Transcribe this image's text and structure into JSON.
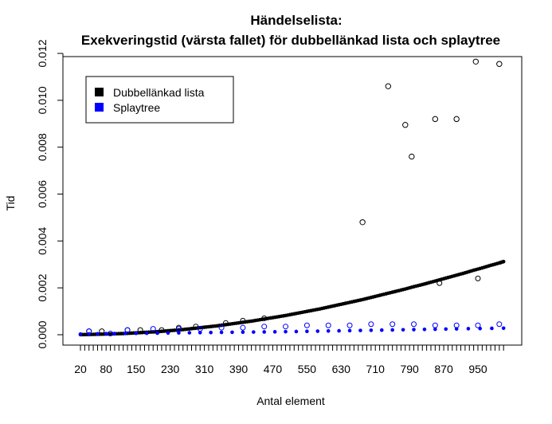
{
  "chart_data": {
    "type": "scatter",
    "title": "Händelselista:",
    "subtitle": "Exekveringstid (värsta fallet) för dubbellänkad lista och splaytree",
    "xlabel": "Antal element",
    "ylabel": "Tid",
    "x_tick_labels": [
      "20",
      "80",
      "150",
      "230",
      "310",
      "390",
      "470",
      "550",
      "630",
      "710",
      "790",
      "870",
      "950"
    ],
    "y_tick_labels": [
      "0.000",
      "0.002",
      "0.004",
      "0.006",
      "0.008",
      "0.010",
      "0.012"
    ],
    "ylim": [
      0,
      0.012
    ],
    "grid": false,
    "legend_position": "top-left",
    "legend": [
      {
        "name": "Dubbellänkad lista",
        "color": "#000000"
      },
      {
        "name": "Splaytree",
        "color": "#0000ff"
      }
    ],
    "series": [
      {
        "name": "Dubbellänkad lista",
        "color": "#000000",
        "fitted": [
          [
            20,
            5e-06
          ],
          [
            40,
            1e-05
          ],
          [
            60,
            2e-05
          ],
          [
            80,
            3e-05
          ],
          [
            100,
            4e-05
          ],
          [
            120,
            5e-05
          ],
          [
            140,
            7e-05
          ],
          [
            160,
            9e-05
          ],
          [
            180,
            0.00011
          ],
          [
            200,
            0.00013
          ],
          [
            220,
            0.00016
          ],
          [
            240,
            0.00019
          ],
          [
            260,
            0.00022
          ],
          [
            280,
            0.00026
          ],
          [
            300,
            0.0003
          ],
          [
            320,
            0.00034
          ],
          [
            340,
            0.00038
          ],
          [
            360,
            0.00043
          ],
          [
            380,
            0.00048
          ],
          [
            400,
            0.00053
          ],
          [
            420,
            0.00058
          ],
          [
            440,
            0.00064
          ],
          [
            460,
            0.0007
          ],
          [
            480,
            0.00076
          ],
          [
            500,
            0.00082
          ],
          [
            520,
            0.00089
          ],
          [
            540,
            0.00096
          ],
          [
            560,
            0.00103
          ],
          [
            580,
            0.0011
          ],
          [
            600,
            0.00118
          ],
          [
            620,
            0.00126
          ],
          [
            640,
            0.00134
          ],
          [
            660,
            0.00142
          ],
          [
            680,
            0.0015
          ],
          [
            700,
            0.00159
          ],
          [
            720,
            0.00168
          ],
          [
            740,
            0.00177
          ],
          [
            760,
            0.00186
          ],
          [
            780,
            0.00195
          ],
          [
            800,
            0.00205
          ],
          [
            820,
            0.00214
          ],
          [
            840,
            0.00224
          ],
          [
            860,
            0.00234
          ],
          [
            880,
            0.00244
          ],
          [
            900,
            0.00254
          ],
          [
            920,
            0.00264
          ],
          [
            940,
            0.00275
          ],
          [
            960,
            0.00285
          ],
          [
            980,
            0.00296
          ],
          [
            1000,
            0.00306
          ],
          [
            1010,
            0.00312
          ]
        ],
        "outliers": [
          [
            680,
            0.0048
          ],
          [
            740,
            0.0106
          ],
          [
            780,
            0.00895
          ],
          [
            795,
            0.0076
          ],
          [
            850,
            0.0092
          ],
          [
            900,
            0.0092
          ],
          [
            945,
            0.01165
          ],
          [
            1000,
            0.01155
          ]
        ],
        "open_points": [
          [
            40,
            0.00015
          ],
          [
            70,
            0.00015
          ],
          [
            130,
            0.0002
          ],
          [
            160,
            0.0002
          ],
          [
            210,
            0.0002
          ],
          [
            250,
            0.0003
          ],
          [
            290,
            0.00035
          ],
          [
            360,
            0.0005
          ],
          [
            400,
            0.0006
          ],
          [
            450,
            0.0007
          ],
          [
            860,
            0.0022
          ],
          [
            950,
            0.0024
          ]
        ]
      },
      {
        "name": "Splaytree",
        "color": "#0000ff",
        "fitted": [
          [
            20,
            3e-05
          ],
          [
            100,
            5e-05
          ],
          [
            200,
            7e-05
          ],
          [
            300,
            9e-05
          ],
          [
            400,
            0.00011
          ],
          [
            500,
            0.00013
          ],
          [
            600,
            0.00016
          ],
          [
            700,
            0.00019
          ],
          [
            800,
            0.00022
          ],
          [
            900,
            0.00025
          ],
          [
            1010,
            0.00028
          ]
        ],
        "open_points": [
          [
            40,
            0.00015
          ],
          [
            90,
            5e-05
          ],
          [
            130,
            0.0002
          ],
          [
            190,
            0.00025
          ],
          [
            250,
            0.00025
          ],
          [
            300,
            0.00025
          ],
          [
            350,
            0.0003
          ],
          [
            400,
            0.0003
          ],
          [
            450,
            0.00035
          ],
          [
            500,
            0.00035
          ],
          [
            550,
            0.0004
          ],
          [
            600,
            0.0004
          ],
          [
            650,
            0.0004
          ],
          [
            700,
            0.00045
          ],
          [
            750,
            0.00045
          ],
          [
            800,
            0.00045
          ],
          [
            850,
            0.0004
          ],
          [
            900,
            0.0004
          ],
          [
            950,
            0.0004
          ],
          [
            1000,
            0.00045
          ]
        ]
      }
    ]
  }
}
